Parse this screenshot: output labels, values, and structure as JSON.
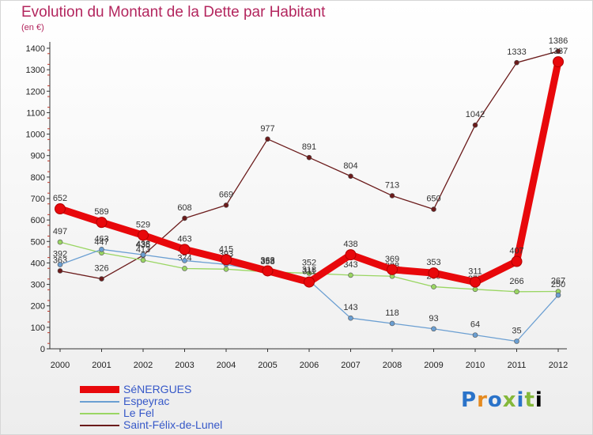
{
  "title": "Evolution du Montant de la Dette par Habitant",
  "unit_label": "(en €)",
  "logo_text": "Proxiti",
  "chart_data": {
    "type": "line",
    "title": "Evolution du Montant de la Dette par Habitant",
    "ylabel": "(en €)",
    "x": [
      "2000",
      "2001",
      "2002",
      "2003",
      "2004",
      "2005",
      "2006",
      "2007",
      "2008",
      "2009",
      "2010",
      "2011",
      "2012"
    ],
    "ylim": [
      0,
      1400
    ],
    "yticks": [
      0,
      100,
      200,
      300,
      400,
      500,
      600,
      700,
      800,
      900,
      1000,
      1100,
      1200,
      1300,
      1400
    ],
    "grid": false,
    "legend_position": "bottom-left",
    "series": [
      {
        "name": "SéNERGUES",
        "color": "#e8080b",
        "values": [
          652,
          589,
          529,
          463,
          415,
          363,
          311,
          438,
          369,
          353,
          311,
          407,
          1337
        ]
      },
      {
        "name": "Espeyrac",
        "color": "#6b9fd2",
        "values": [
          392,
          463,
          438,
          411,
          393,
          358,
          318,
          143,
          118,
          93,
          64,
          35,
          250
        ]
      },
      {
        "name": "Le Fel",
        "color": "#9ad663",
        "values": [
          497,
          447,
          413,
          374,
          371,
          358,
          352,
          343,
          338,
          289,
          277,
          266,
          267
        ]
      },
      {
        "name": "Saint-Félix-de-Lunel",
        "color": "#6b1b1b",
        "values": [
          363,
          326,
          435,
          608,
          669,
          977,
          891,
          804,
          713,
          650,
          1042,
          1333,
          1386
        ]
      }
    ]
  }
}
